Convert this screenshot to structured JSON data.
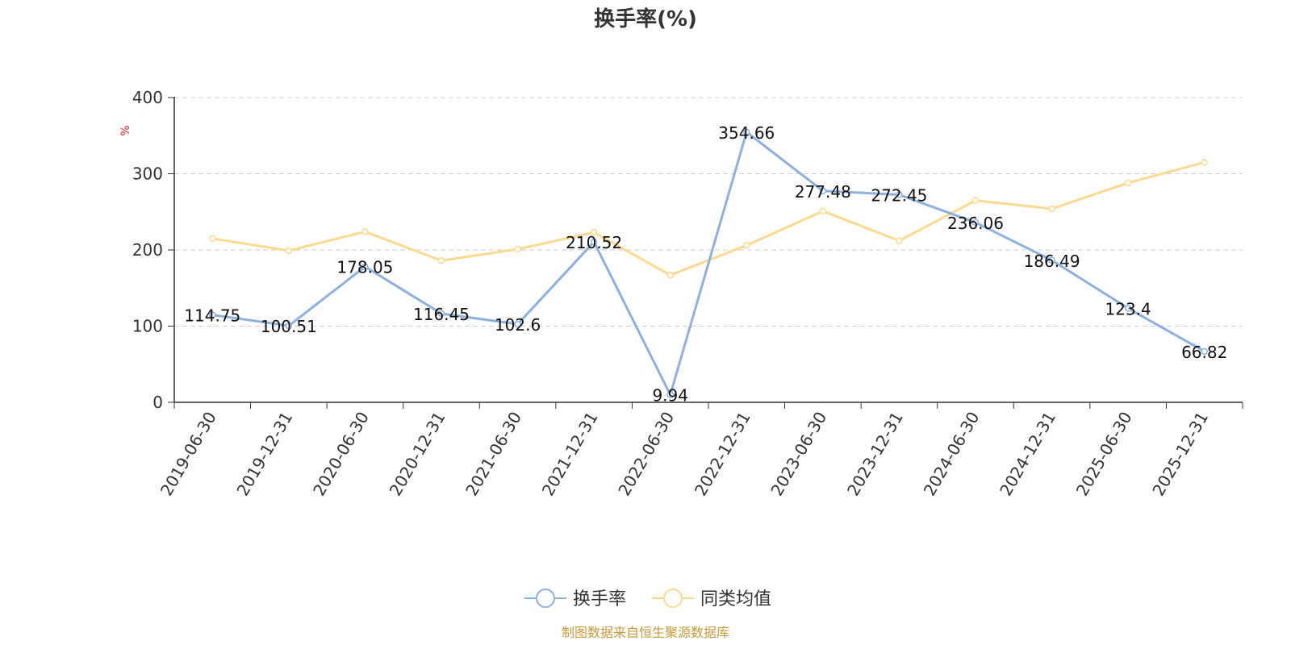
{
  "chart_data": {
    "type": "line",
    "title": "换手率(%)",
    "ylabel": "%",
    "xlabel": "",
    "ylim": [
      0,
      400
    ],
    "yticks": [
      0,
      100,
      200,
      300,
      400
    ],
    "grid": true,
    "legend_position": "bottom",
    "categories": [
      "2019-06-30",
      "2019-12-31",
      "2020-06-30",
      "2020-12-31",
      "2021-06-30",
      "2021-12-31",
      "2022-06-30",
      "2022-12-31",
      "2023-06-30",
      "2023-12-31",
      "2024-06-30",
      "2024-12-31",
      "2025-06-30",
      "2025-12-31"
    ],
    "series": [
      {
        "name": "换手率",
        "color": "#8eb0dc",
        "show_labels": true,
        "values": [
          114.75,
          100.51,
          178.05,
          116.45,
          102.6,
          210.52,
          9.94,
          354.66,
          277.48,
          272.45,
          236.06,
          186.49,
          123.4,
          66.82
        ]
      },
      {
        "name": "同类均值",
        "color": "#fbd98e",
        "show_labels": false,
        "values": [
          215,
          199,
          224,
          186,
          201,
          223,
          167,
          206,
          251,
          212,
          265,
          254,
          288,
          315
        ]
      }
    ],
    "source": "制图数据来自恒生聚源数据库",
    "source_color": "#c89a3c",
    "ylabel_color": "#e02020"
  }
}
